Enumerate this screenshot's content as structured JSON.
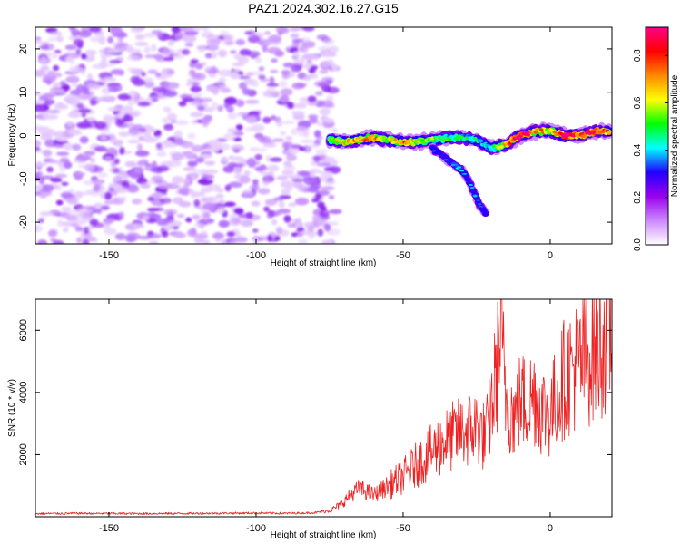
{
  "figure": {
    "title": "PAZ1.2024.302.16.27.G15"
  },
  "chart_data": [
    {
      "type": "heatmap",
      "title": "PAZ1.2024.302.16.27.G15",
      "xlabel": "Height of straight line (km)",
      "ylabel": "Frequency (Hz)",
      "xlim": [
        -175,
        21
      ],
      "ylim": [
        -25,
        25
      ],
      "xticks": [
        -150,
        -100,
        -50,
        0
      ],
      "yticks": [
        -20,
        -10,
        0,
        10,
        20
      ],
      "colorbar": {
        "label": "Normalized spectral amplitude",
        "range": [
          0,
          0.92
        ],
        "ticks": [
          "0.0",
          "0.2",
          "0.4",
          "0.6",
          "0.8"
        ],
        "colors": [
          "#ffffff",
          "#cc88ff",
          "#9900ee",
          "#2200ff",
          "#00ffff",
          "#00ff00",
          "#ffff00",
          "#ff8800",
          "#ff0000",
          "#ff0088"
        ]
      },
      "ridge": {
        "x": [
          -75,
          -70,
          -65,
          -60,
          -55,
          -50,
          -45,
          -40,
          -35,
          -30,
          -25,
          -20,
          -15,
          -10,
          -5,
          0,
          5,
          10,
          15,
          20
        ],
        "frequency": [
          -1,
          -1.5,
          -1,
          -0.5,
          -1,
          -1.5,
          -1.5,
          -1,
          -0.5,
          -0.5,
          -1,
          -3,
          -2,
          0,
          1,
          1,
          0,
          0,
          1,
          1
        ],
        "amplitude": [
          0.5,
          0.6,
          0.65,
          0.7,
          0.55,
          0.7,
          0.6,
          0.5,
          0.45,
          0.45,
          0.4,
          0.4,
          0.65,
          0.85,
          0.7,
          0.6,
          0.85,
          0.75,
          0.8,
          0.75
        ]
      },
      "branch": {
        "x": [
          -40,
          -38,
          -36,
          -34,
          -32,
          -30,
          -28,
          -26,
          -24,
          -22
        ],
        "frequency": [
          -3,
          -4,
          -5,
          -6,
          -7,
          -8,
          -10,
          -13,
          -16,
          -18
        ],
        "amplitude": [
          0.3,
          0.3,
          0.3,
          0.35,
          0.35,
          0.35,
          0.3,
          0.35,
          0.3,
          0.25
        ]
      }
    },
    {
      "type": "line",
      "xlabel": "Height of straight line (km)",
      "ylabel": "SNR (10 * v/v)",
      "xlim": [
        -175,
        21
      ],
      "ylim": [
        0,
        7000
      ],
      "xticks": [
        -150,
        -100,
        -50,
        0
      ],
      "yticks": [
        2000,
        4000,
        6000
      ],
      "series": [
        {
          "color": "#ee2222",
          "x": [
            -175,
            -160,
            -140,
            -120,
            -100,
            -90,
            -80,
            -75,
            -72,
            -70,
            -68,
            -65,
            -62,
            -60,
            -55,
            -50,
            -45,
            -40,
            -35,
            -30,
            -25,
            -22,
            -20,
            -18,
            -17,
            -15,
            -12,
            -10,
            -8,
            -5,
            -3,
            0,
            3,
            5,
            8,
            10,
            12,
            15,
            18,
            21
          ],
          "y": [
            100,
            110,
            100,
            110,
            120,
            110,
            130,
            200,
            350,
            500,
            700,
            900,
            800,
            700,
            1000,
            1300,
            1700,
            2100,
            2500,
            2700,
            2900,
            2500,
            3500,
            4800,
            6000,
            3800,
            3200,
            3800,
            3600,
            4000,
            3500,
            3300,
            4100,
            4500,
            4800,
            4900,
            5100,
            5400,
            5700,
            6000
          ]
        }
      ]
    }
  ]
}
